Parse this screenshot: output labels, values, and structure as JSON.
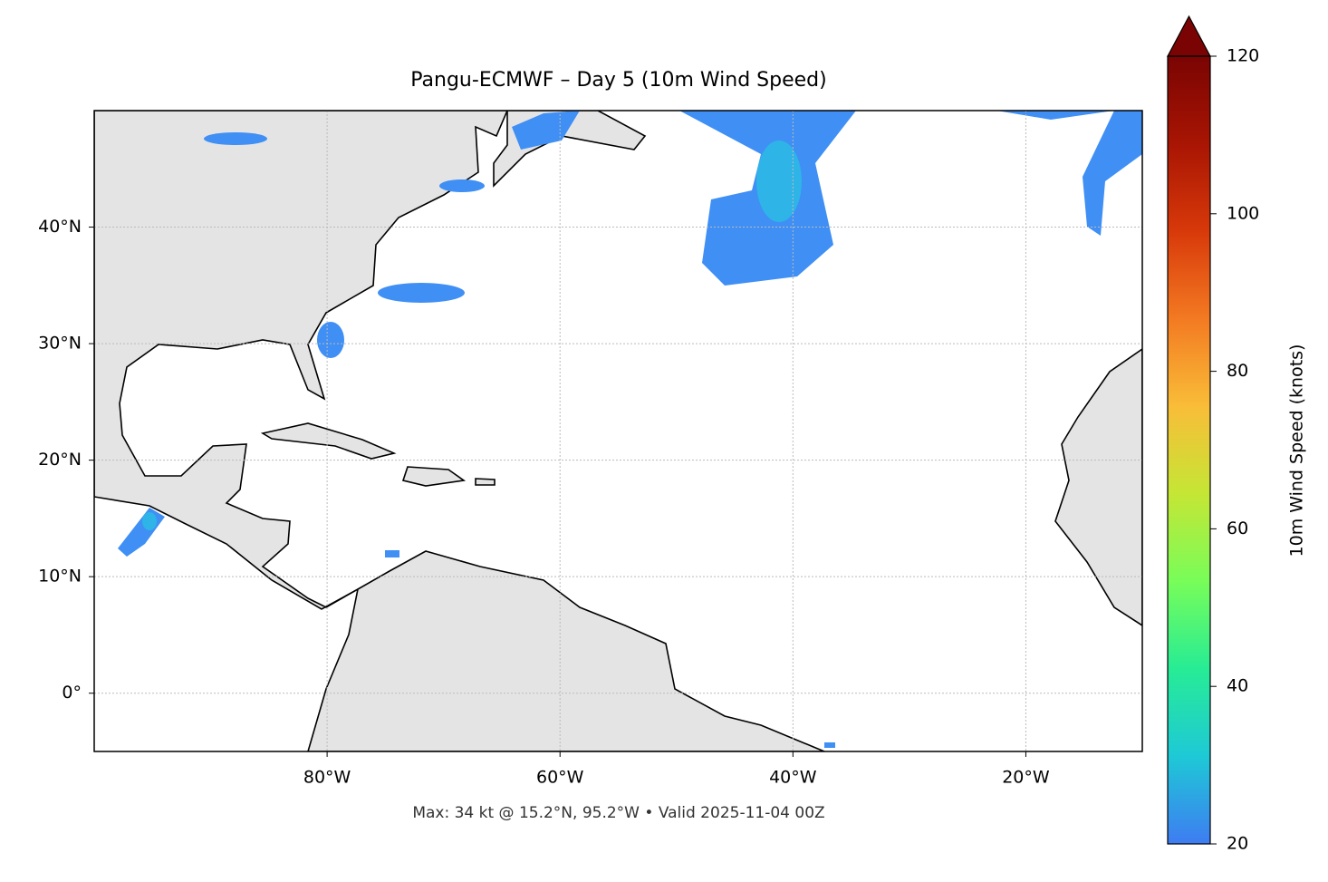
{
  "title": "Pangu-ECMWF – Day 5 (10m Wind Speed)",
  "map": {
    "lon_range": [
      -100,
      -10
    ],
    "lat_range": [
      -5,
      50
    ],
    "lon_ticks": [
      {
        "value": -80,
        "label": "80°W"
      },
      {
        "value": -60,
        "label": "60°W"
      },
      {
        "value": -40,
        "label": "40°W"
      },
      {
        "value": -20,
        "label": "20°W"
      }
    ],
    "lat_ticks": [
      {
        "value": 0,
        "label": "0°"
      },
      {
        "value": 10,
        "label": "10°N"
      },
      {
        "value": 20,
        "label": "20°N"
      },
      {
        "value": 30,
        "label": "30°N"
      },
      {
        "value": 40,
        "label": "40°N"
      }
    ]
  },
  "colorbar": {
    "label": "10m Wind Speed (knots)",
    "range": [
      20,
      120
    ],
    "ticks": [
      20,
      40,
      60,
      80,
      100,
      120
    ],
    "colors": [
      "#3e7cf2",
      "#1ec9d6",
      "#27ec95",
      "#78fd59",
      "#c5e635",
      "#f9bd38",
      "#f37a22",
      "#d8390a",
      "#a81503",
      "#7a0403"
    ]
  },
  "footnote": "Max: 34 kt @ 15.2°N, 95.2°W • Valid 2025-11-04 00Z"
}
